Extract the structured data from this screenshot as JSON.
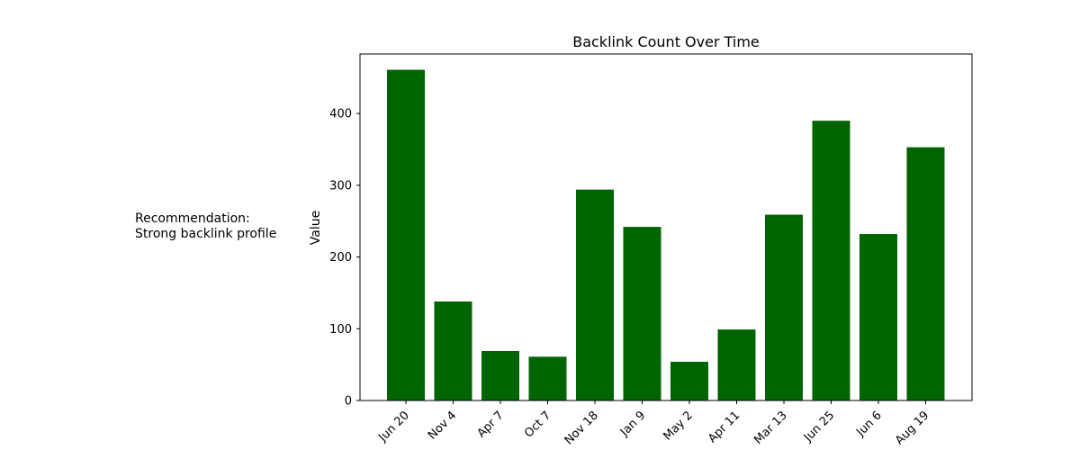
{
  "recommendation": {
    "line1": "Recommendation:",
    "line2": "Strong backlink profile"
  },
  "chart_data": {
    "type": "bar",
    "title": "Backlink Count Over Time",
    "xlabel": "",
    "ylabel": "Value",
    "categories": [
      "Jun 20",
      "Nov 4",
      "Apr 7",
      "Oct 7",
      "Nov 18",
      "Jan 9",
      "May 2",
      "Apr 11",
      "Mar 13",
      "Jun 25",
      "Jun 6",
      "Aug 19"
    ],
    "values": [
      461,
      138,
      69,
      61,
      294,
      242,
      54,
      99,
      259,
      390,
      232,
      353
    ],
    "ylim": [
      0,
      483
    ],
    "yticks": [
      0,
      100,
      200,
      300,
      400
    ],
    "bar_color": "#006400",
    "grid": false,
    "legend": "none"
  }
}
